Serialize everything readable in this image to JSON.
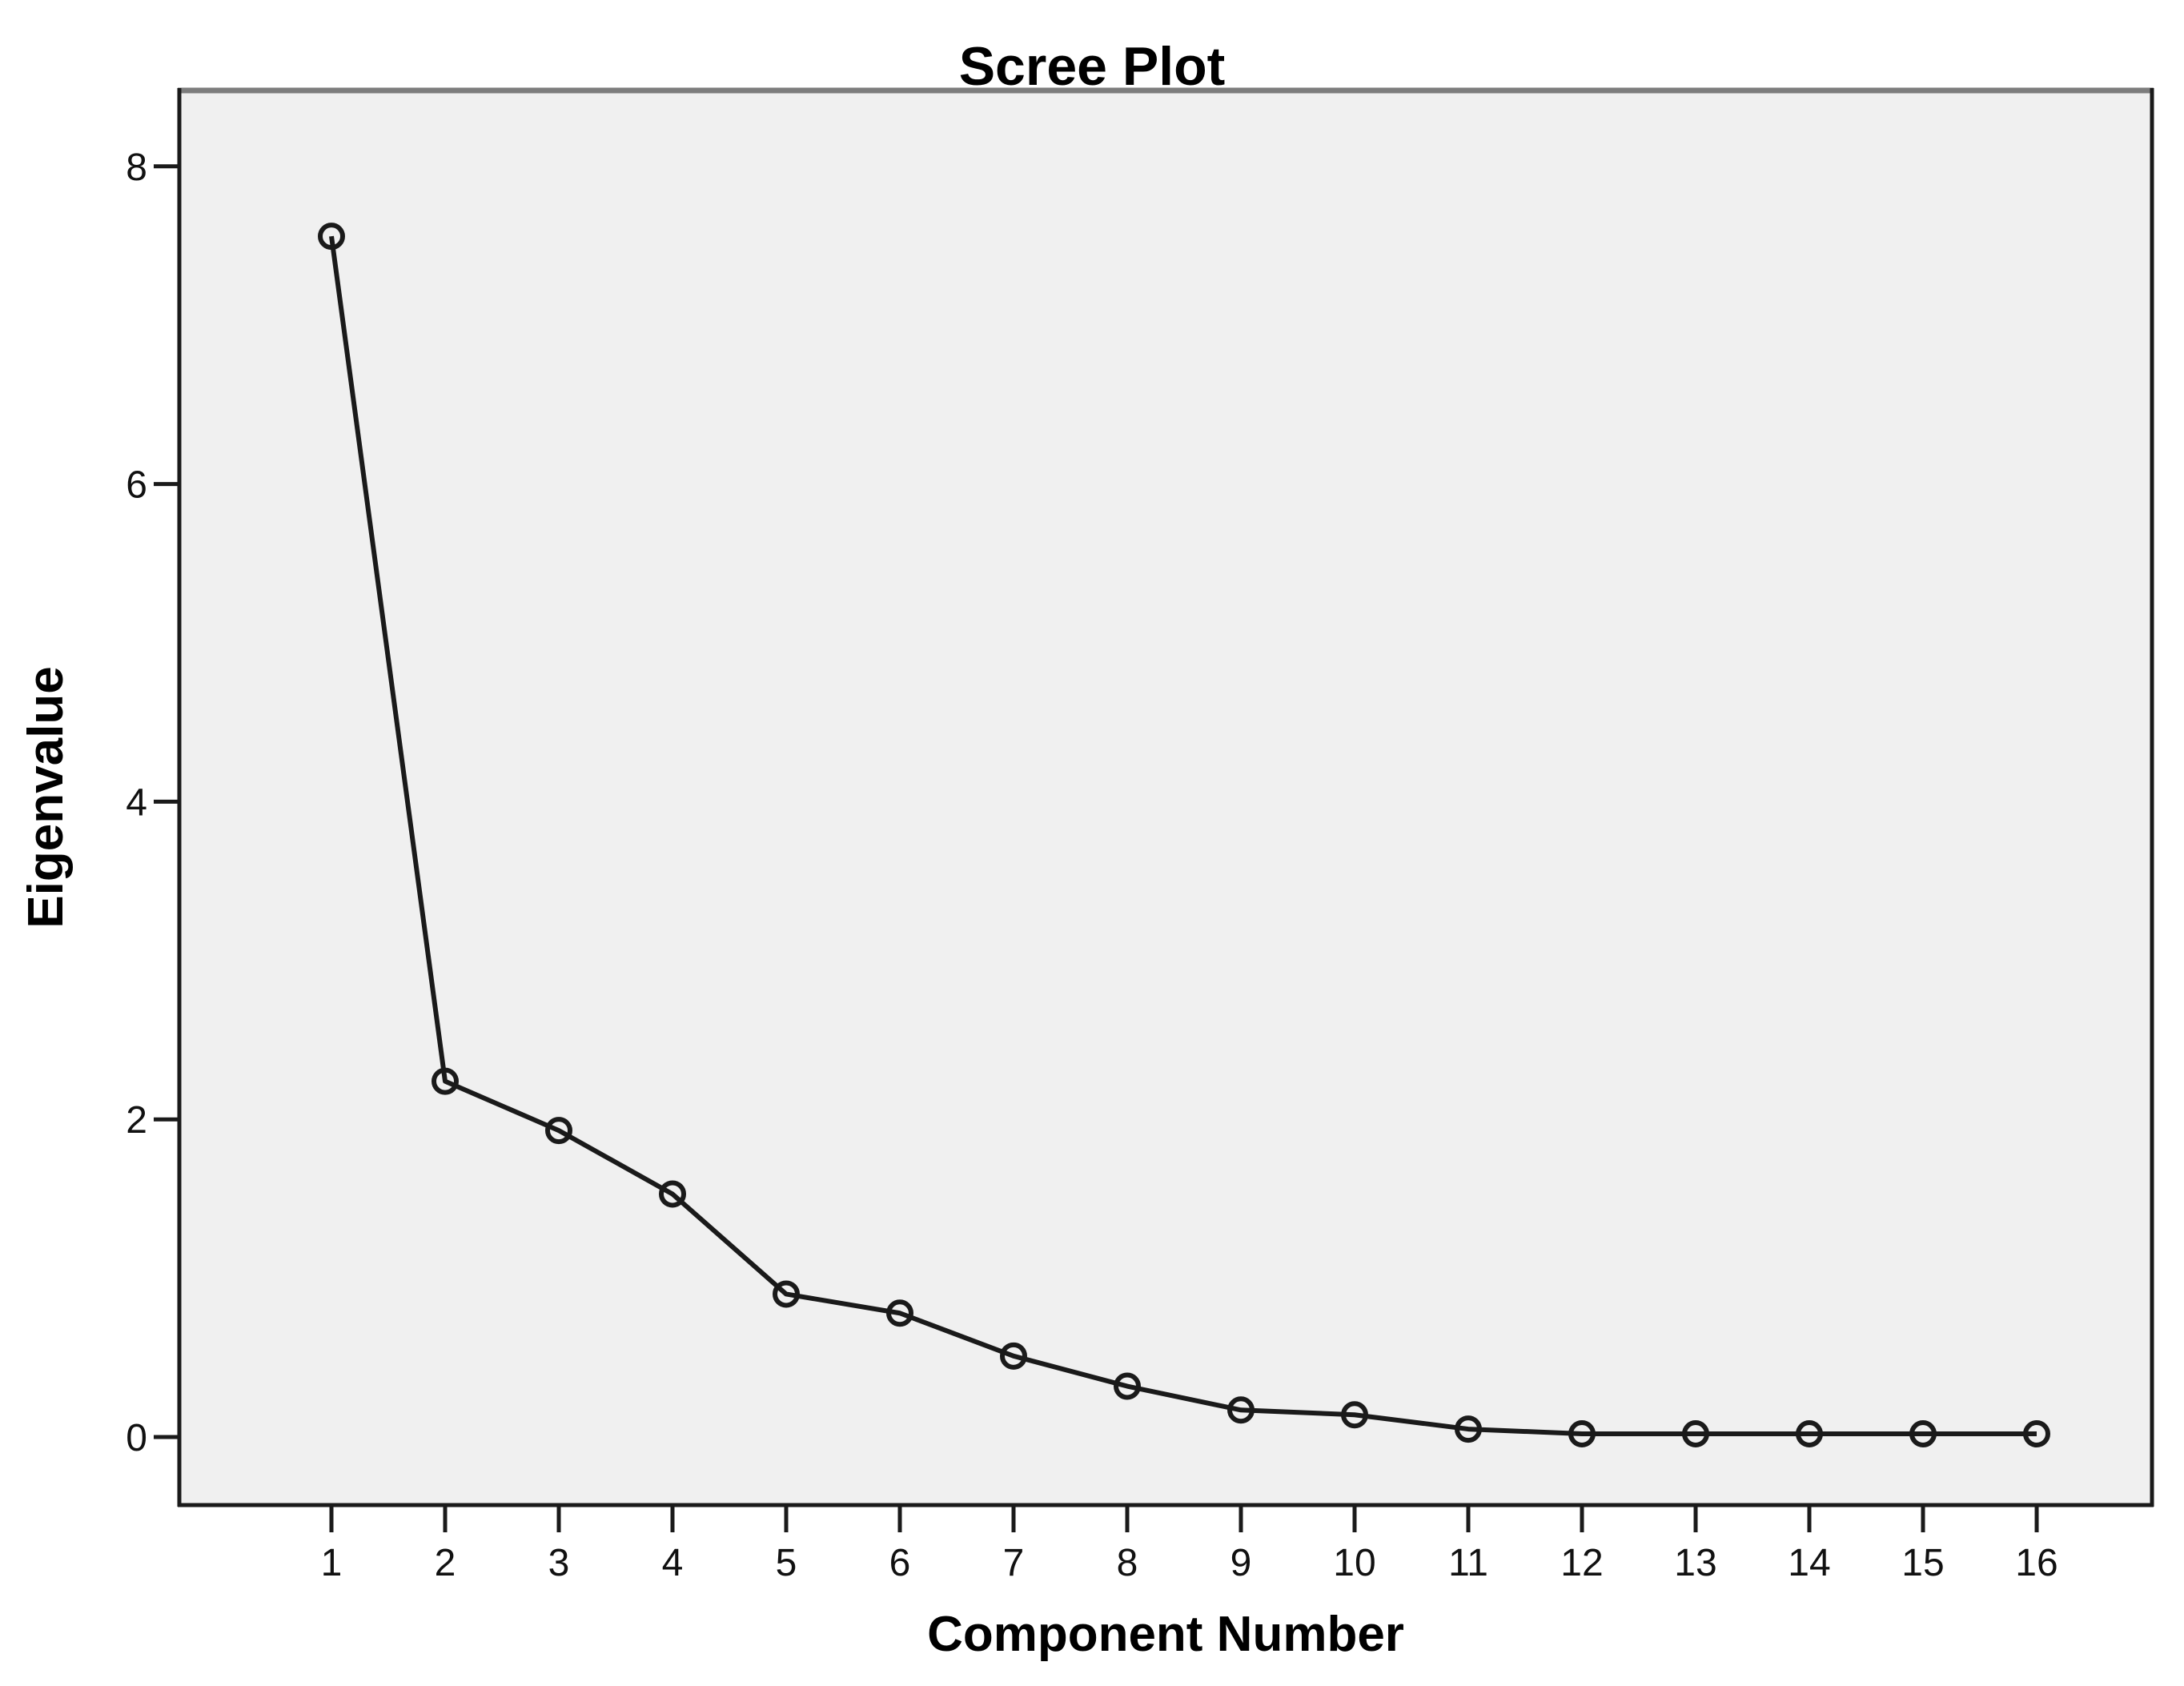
{
  "chart_data": {
    "type": "line",
    "title": "Scree Plot",
    "xlabel": "Component Number",
    "ylabel": "Eigenvalue",
    "categories": [
      1,
      2,
      3,
      4,
      5,
      6,
      7,
      8,
      9,
      10,
      11,
      12,
      13,
      14,
      15,
      16
    ],
    "values": [
      7.56,
      2.24,
      1.93,
      1.53,
      0.9,
      0.78,
      0.51,
      0.32,
      0.17,
      0.14,
      0.05,
      0.02,
      0.02,
      0.02,
      0.02,
      0.02
    ],
    "yticks": [
      0,
      2,
      4,
      6,
      8
    ],
    "ylim": [
      -0.45,
      8.5
    ],
    "grid": false,
    "legend": "none",
    "marker": "open-circle",
    "colors": {
      "plot_background": "#f0f0f0",
      "page_background": "#ffffff",
      "line": "#1a1a1a",
      "marker_stroke": "#1a1a1a",
      "frame": "#1a1a1a",
      "frame_top": "#7d7d7d",
      "tick": "#1a1a1a",
      "text": "#000000"
    }
  }
}
